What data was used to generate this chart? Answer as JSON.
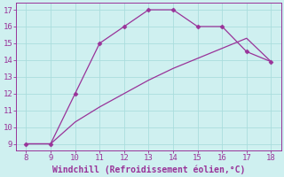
{
  "xlabel": "Windchill (Refroidissement éolien,°C)",
  "x_upper": [
    8,
    9,
    10,
    11,
    12,
    13,
    14,
    15,
    16,
    17,
    18
  ],
  "y_upper": [
    9,
    9,
    12,
    15,
    16,
    17,
    17,
    16,
    16,
    14.5,
    13.9
  ],
  "x_lower": [
    8,
    9,
    10,
    11,
    12,
    13,
    14,
    15,
    16,
    17,
    18
  ],
  "y_lower": [
    9,
    9,
    10.3,
    11.2,
    12.0,
    12.8,
    13.5,
    14.1,
    14.7,
    15.3,
    13.9
  ],
  "line_color": "#993399",
  "bg_color": "#cff0f0",
  "grid_color": "#aadddd",
  "tick_color": "#993399",
  "label_color": "#993399",
  "xlim": [
    7.6,
    18.4
  ],
  "ylim": [
    8.6,
    17.4
  ],
  "xticks": [
    8,
    9,
    10,
    11,
    12,
    13,
    14,
    15,
    16,
    17,
    18
  ],
  "yticks": [
    9,
    10,
    11,
    12,
    13,
    14,
    15,
    16,
    17
  ],
  "xlabel_fontsize": 7.0,
  "tick_fontsize": 6.5
}
